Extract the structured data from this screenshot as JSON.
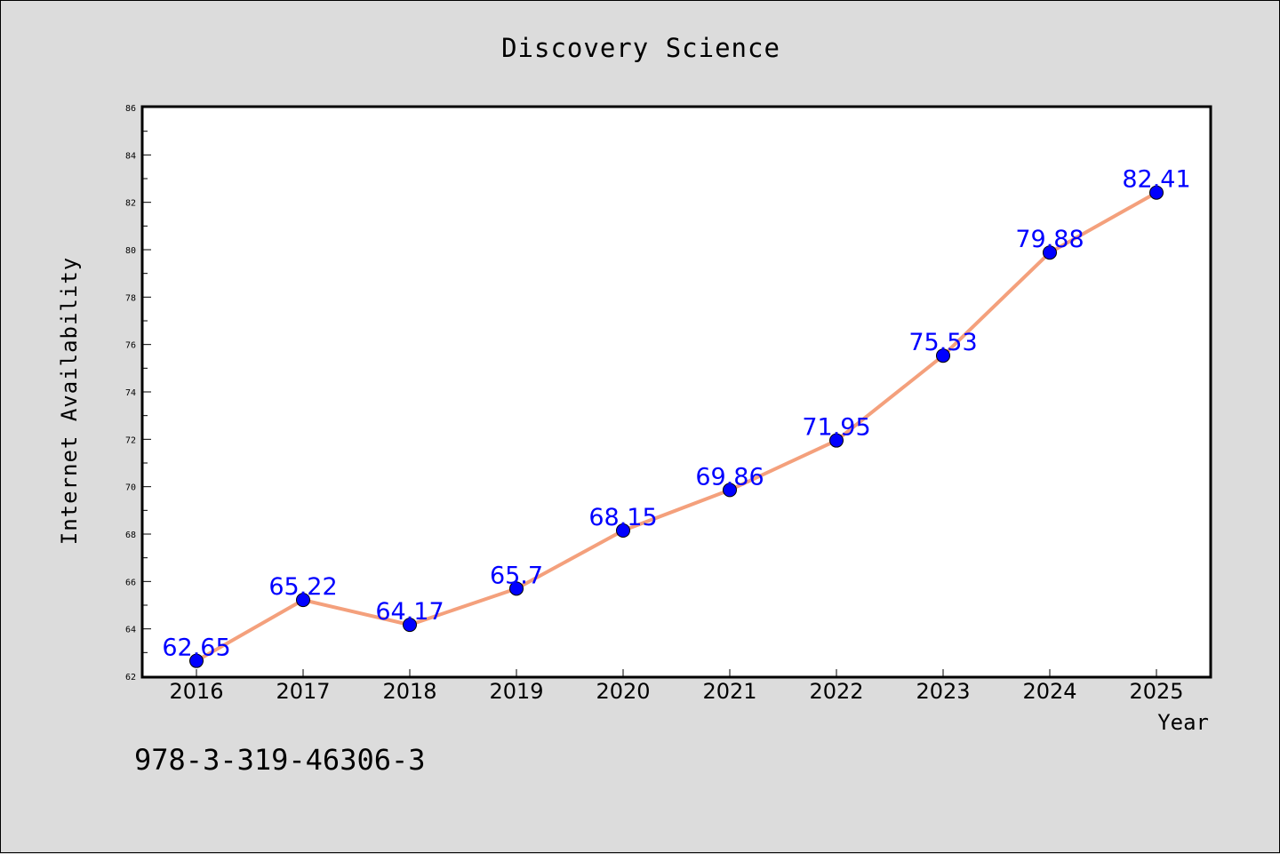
{
  "chart_data": {
    "type": "line",
    "title": "Discovery Science",
    "xlabel": "Year",
    "ylabel": "Internet Availability",
    "categories": [
      "2016",
      "2017",
      "2018",
      "2019",
      "2020",
      "2021",
      "2022",
      "2023",
      "2024",
      "2025"
    ],
    "series": [
      {
        "values": [
          62.65,
          65.22,
          64.17,
          65.7,
          68.15,
          69.86,
          71.95,
          75.53,
          79.88,
          82.41
        ]
      }
    ],
    "data_labels": [
      "62.65",
      "65.22",
      "64.17",
      "65.7",
      "68.15",
      "69.86",
      "71.95",
      "75.53",
      "79.88",
      "82.41"
    ],
    "ylim": [
      62,
      86
    ],
    "yticks": [
      "62",
      "64",
      "66",
      "68",
      "70",
      "72",
      "74",
      "76",
      "78",
      "80",
      "82",
      "84",
      "86"
    ],
    "grid": false,
    "line_color": "#f4a07c",
    "marker_color": "#0000ff",
    "label_color": "#0000ff",
    "background_color": "#dcdcdc",
    "plot_background_color": "#ffffff"
  },
  "annotation": "978-3-319-46306-3"
}
